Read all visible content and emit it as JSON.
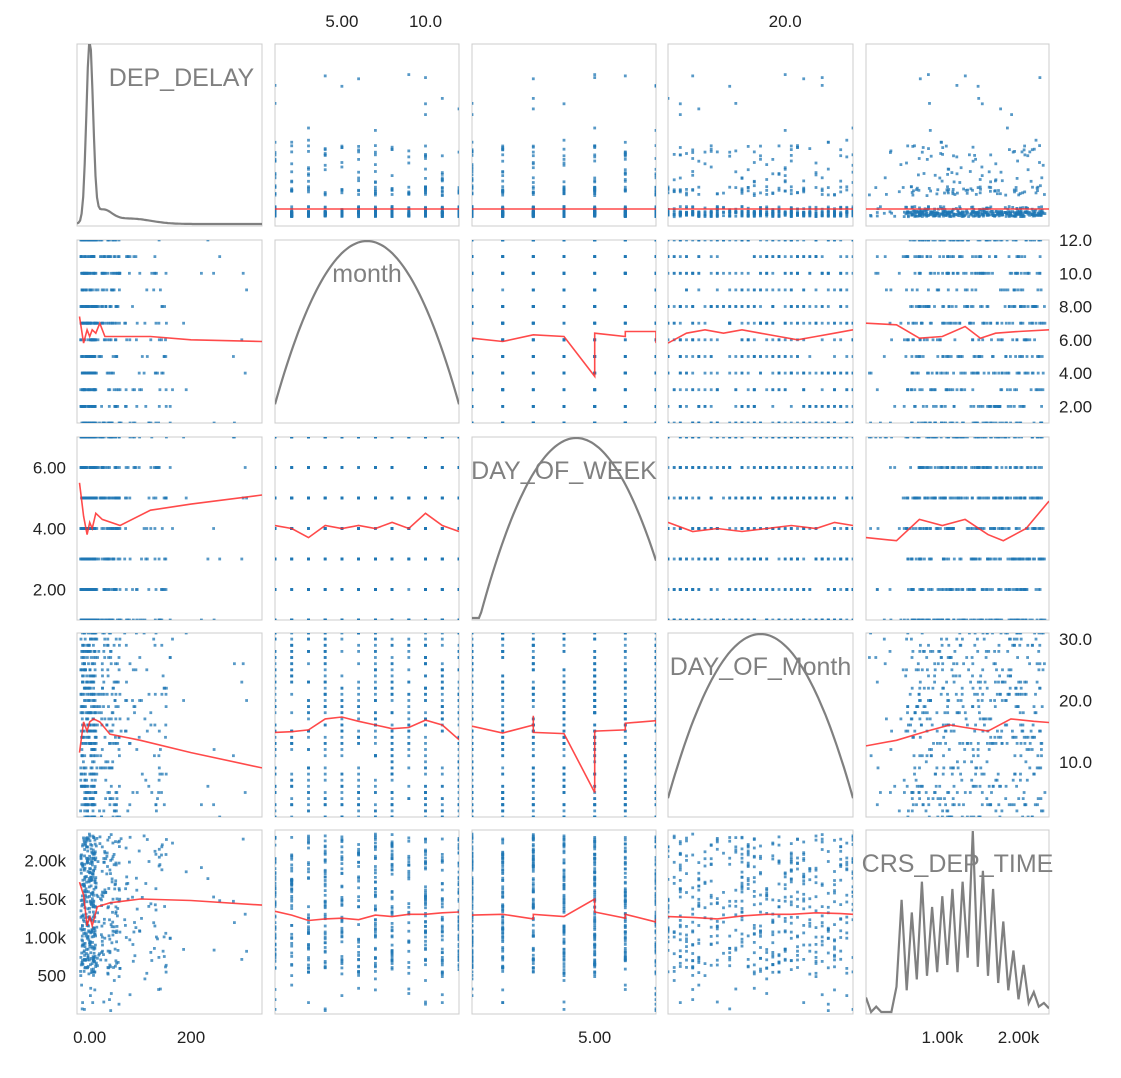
{
  "chart_data": {
    "type": "scatter-matrix",
    "variables": [
      {
        "name": "DEP_DELAY",
        "range": [
          -25,
          340
        ]
      },
      {
        "name": "month",
        "range": [
          1,
          12
        ]
      },
      {
        "name": "DAY_OF_WEEK",
        "range": [
          1,
          7
        ]
      },
      {
        "name": "DAY_OF_Month",
        "range": [
          1,
          31
        ]
      },
      {
        "name": "CRS_DEP_TIME",
        "range": [
          0,
          2400
        ]
      }
    ],
    "diagonal": "density",
    "off_diagonal": "scatter with red trend line",
    "ticks": {
      "top": [
        {
          "col": 1,
          "values": [
            5,
            10
          ],
          "labels": [
            "5.00",
            "10.0"
          ]
        },
        {
          "col": 3,
          "values": [
            20
          ],
          "labels": [
            "20.0"
          ]
        }
      ],
      "bottom": [
        {
          "col": 0,
          "values": [
            0,
            200
          ],
          "labels": [
            "0.00",
            "200"
          ]
        },
        {
          "col": 2,
          "values": [
            5
          ],
          "labels": [
            "5.00"
          ]
        },
        {
          "col": 4,
          "values": [
            1000,
            2000
          ],
          "labels": [
            "1.00k",
            "2.00k"
          ]
        }
      ],
      "left": [
        {
          "row": 2,
          "values": [
            2,
            4,
            6
          ],
          "labels": [
            "2.00",
            "4.00",
            "6.00"
          ]
        },
        {
          "row": 4,
          "values": [
            500,
            1000,
            1500,
            2000
          ],
          "labels": [
            "500",
            "1.00k",
            "1.50k",
            "2.00k"
          ]
        }
      ],
      "right": [
        {
          "row": 1,
          "values": [
            2,
            4,
            6,
            8,
            10,
            12
          ],
          "labels": [
            "2.00",
            "4.00",
            "6.00",
            "8.00",
            "10.0",
            "12.0"
          ]
        },
        {
          "row": 3,
          "values": [
            10,
            20,
            30
          ],
          "labels": [
            "10.0",
            "20.0",
            "30.0"
          ]
        }
      ]
    },
    "trends": {
      "1-0": [
        [
          -20,
          7.4
        ],
        [
          -12,
          5.8
        ],
        [
          -5,
          6.6
        ],
        [
          0,
          6.2
        ],
        [
          5,
          6.6
        ],
        [
          12,
          6.4
        ],
        [
          20,
          7.0
        ],
        [
          30,
          6.2
        ],
        [
          60,
          6.2
        ],
        [
          120,
          6.2
        ],
        [
          200,
          6.0
        ],
        [
          340,
          5.9
        ]
      ],
      "2-0": [
        [
          -20,
          5.5
        ],
        [
          -12,
          4.4
        ],
        [
          -5,
          3.8
        ],
        [
          0,
          4.2
        ],
        [
          5,
          4.0
        ],
        [
          12,
          4.5
        ],
        [
          25,
          4.3
        ],
        [
          60,
          4.1
        ],
        [
          120,
          4.6
        ],
        [
          200,
          4.8
        ],
        [
          340,
          5.1
        ]
      ],
      "3-0": [
        [
          -20,
          11.5
        ],
        [
          -12,
          16.5
        ],
        [
          -5,
          15.0
        ],
        [
          0,
          16.5
        ],
        [
          8,
          17.0
        ],
        [
          20,
          16.5
        ],
        [
          40,
          14.5
        ],
        [
          100,
          13.5
        ],
        [
          200,
          11.5
        ],
        [
          340,
          9.0
        ]
      ],
      "4-0": [
        [
          -20,
          1720
        ],
        [
          -12,
          1550
        ],
        [
          -5,
          1150
        ],
        [
          0,
          1280
        ],
        [
          5,
          1150
        ],
        [
          15,
          1400
        ],
        [
          40,
          1450
        ],
        [
          100,
          1500
        ],
        [
          200,
          1480
        ],
        [
          340,
          1420
        ]
      ],
      "0-1": [
        [
          1,
          10
        ],
        [
          12,
          10
        ]
      ],
      "2-1": [
        [
          1,
          4.1
        ],
        [
          2,
          4.0
        ],
        [
          3,
          3.7
        ],
        [
          4,
          4.1
        ],
        [
          5,
          4.0
        ],
        [
          6,
          4.1
        ],
        [
          7,
          4.0
        ],
        [
          8,
          4.2
        ],
        [
          9,
          4.0
        ],
        [
          10,
          4.5
        ],
        [
          11,
          4.1
        ],
        [
          12,
          3.9
        ]
      ],
      "3-1": [
        [
          1,
          14.8
        ],
        [
          2,
          14.9
        ],
        [
          3,
          15.2
        ],
        [
          4,
          17.0
        ],
        [
          5,
          17.3
        ],
        [
          6,
          16.6
        ],
        [
          7,
          16.0
        ],
        [
          8,
          15.4
        ],
        [
          9,
          15.6
        ],
        [
          10,
          16.8
        ],
        [
          11,
          16.0
        ],
        [
          12,
          13.6
        ]
      ],
      "4-1": [
        [
          1,
          1340
        ],
        [
          2,
          1290
        ],
        [
          3,
          1220
        ],
        [
          4,
          1240
        ],
        [
          5,
          1250
        ],
        [
          6,
          1230
        ],
        [
          7,
          1290
        ],
        [
          8,
          1270
        ],
        [
          9,
          1300
        ],
        [
          10,
          1300
        ],
        [
          11,
          1320
        ],
        [
          12,
          1330
        ]
      ],
      "0-2": [
        [
          1,
          10
        ],
        [
          7,
          10
        ]
      ],
      "1-2": [
        [
          1,
          6.1
        ],
        [
          2,
          5.9
        ],
        [
          3,
          6.3
        ],
        [
          4,
          6.2
        ],
        [
          5,
          3.8
        ],
        [
          5,
          6.4
        ],
        [
          6,
          6.2
        ],
        [
          6,
          6.5
        ],
        [
          7,
          6.5
        ],
        [
          7,
          5.8
        ]
      ],
      "3-2": [
        [
          1,
          15.8
        ],
        [
          2,
          14.7
        ],
        [
          3,
          16.0
        ],
        [
          3,
          17.5
        ],
        [
          3,
          14.8
        ],
        [
          4,
          14.6
        ],
        [
          5,
          5.0
        ],
        [
          5,
          15.0
        ],
        [
          6,
          15.2
        ],
        [
          6,
          16.3
        ],
        [
          7,
          16.7
        ],
        [
          7,
          16.2
        ]
      ],
      "4-2": [
        [
          1,
          1290
        ],
        [
          2,
          1300
        ],
        [
          3,
          1240
        ],
        [
          3,
          1300
        ],
        [
          4,
          1270
        ],
        [
          5,
          1500
        ],
        [
          5,
          1330
        ],
        [
          6,
          1250
        ],
        [
          6,
          1300
        ],
        [
          7,
          1200
        ],
        [
          7,
          1240
        ]
      ],
      "0-3": [
        [
          1,
          10
        ],
        [
          31,
          10
        ]
      ],
      "1-3": [
        [
          1,
          5.8
        ],
        [
          4,
          6.4
        ],
        [
          7,
          6.6
        ],
        [
          10,
          6.4
        ],
        [
          13,
          6.6
        ],
        [
          16,
          6.4
        ],
        [
          19,
          6.2
        ],
        [
          22,
          6.0
        ],
        [
          25,
          6.2
        ],
        [
          28,
          6.4
        ],
        [
          31,
          6.6
        ]
      ],
      "2-3": [
        [
          1,
          4.2
        ],
        [
          5,
          3.9
        ],
        [
          9,
          4.0
        ],
        [
          13,
          3.9
        ],
        [
          17,
          4.0
        ],
        [
          21,
          4.1
        ],
        [
          25,
          4.0
        ],
        [
          28,
          4.2
        ],
        [
          31,
          4.1
        ]
      ],
      "4-3": [
        [
          1,
          1270
        ],
        [
          5,
          1260
        ],
        [
          9,
          1240
        ],
        [
          13,
          1280
        ],
        [
          17,
          1300
        ],
        [
          21,
          1300
        ],
        [
          25,
          1320
        ],
        [
          29,
          1310
        ],
        [
          31,
          1300
        ]
      ],
      "0-4": [
        [
          0,
          10
        ],
        [
          2400,
          10
        ]
      ],
      "1-4": [
        [
          0,
          7.0
        ],
        [
          400,
          6.9
        ],
        [
          700,
          6.1
        ],
        [
          1000,
          6.2
        ],
        [
          1300,
          6.8
        ],
        [
          1500,
          6.1
        ],
        [
          1700,
          6.4
        ],
        [
          2000,
          6.5
        ],
        [
          2400,
          6.6
        ]
      ],
      "2-4": [
        [
          0,
          3.7
        ],
        [
          400,
          3.6
        ],
        [
          700,
          4.3
        ],
        [
          1000,
          4.1
        ],
        [
          1300,
          4.3
        ],
        [
          1600,
          3.8
        ],
        [
          1800,
          3.6
        ],
        [
          2100,
          4.0
        ],
        [
          2400,
          4.9
        ]
      ],
      "3-4": [
        [
          0,
          12.6
        ],
        [
          400,
          13.5
        ],
        [
          800,
          15.0
        ],
        [
          1100,
          16.0
        ],
        [
          1300,
          15.6
        ],
        [
          1600,
          15.0
        ],
        [
          1900,
          17.0
        ],
        [
          2200,
          16.6
        ],
        [
          2400,
          16.4
        ]
      ]
    }
  }
}
